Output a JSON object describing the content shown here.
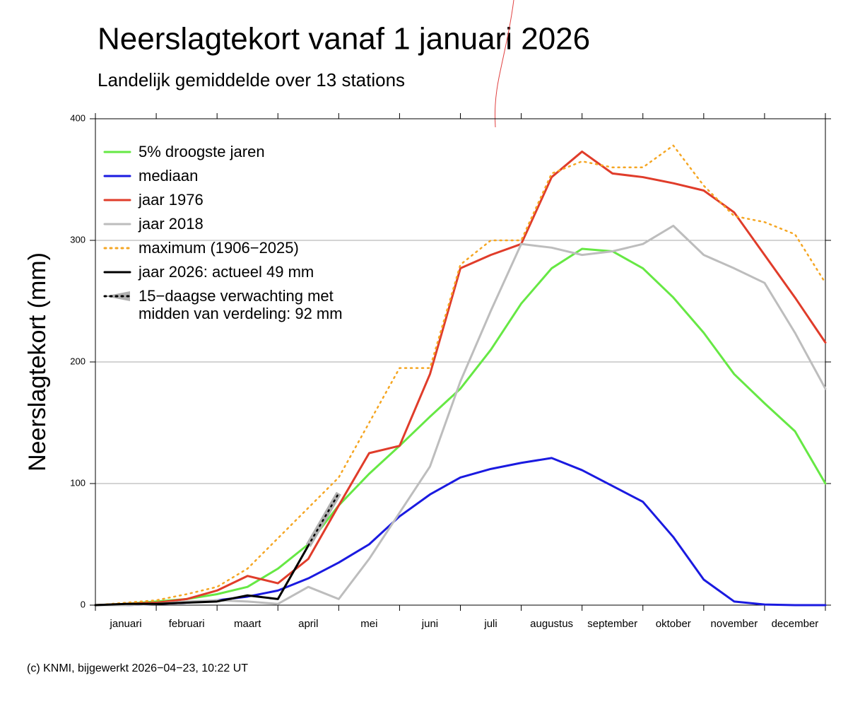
{
  "chart_data": {
    "type": "line",
    "title": "Neerslagtekort vanaf 1 januari 2026",
    "subtitle": "Landelijk gemiddelde over 13 stations",
    "y_label": "Neerslagtekort (mm)",
    "footer": "(c) KNMI, bijgewerkt 2026−04−23, 10:22 UT",
    "categories": [
      null,
      "januari",
      null,
      "februari",
      null,
      "maart",
      null,
      "april",
      null,
      "mei",
      null,
      "juni",
      null,
      "juli",
      null,
      "augustus",
      null,
      "september",
      null,
      "oktober",
      null,
      "november",
      null,
      "december",
      null
    ],
    "ylim": [
      0,
      400
    ],
    "yticks": [
      0,
      100,
      200,
      300,
      400
    ],
    "grid": true,
    "legend": "upper left",
    "series": [
      {
        "name": "5% droogste jaren",
        "color": "#66e844",
        "style": "solid",
        "values": [
          0,
          1,
          3,
          5,
          9,
          15,
          30,
          50,
          82,
          108,
          131,
          155,
          178,
          210,
          248,
          277,
          293,
          291,
          277,
          253,
          224,
          190,
          166,
          143,
          100
        ]
      },
      {
        "name": "mediaan",
        "color": "#1a1ae0",
        "style": "solid",
        "values": [
          0,
          0,
          1,
          2,
          4,
          7,
          12,
          22,
          35,
          50,
          73,
          91,
          105,
          112,
          117,
          121,
          111,
          98,
          85,
          56,
          21,
          3,
          0.5,
          0,
          0
        ]
      },
      {
        "name": "jaar 1976",
        "color": "#e03c2a",
        "style": "solid",
        "values": [
          0,
          1,
          2,
          5,
          12,
          24,
          18,
          38,
          82,
          125,
          131,
          190,
          277,
          288,
          297,
          352,
          373,
          355,
          352,
          347,
          341,
          323,
          288,
          253,
          216
        ]
      },
      {
        "name": "jaar 2018",
        "color": "#bdbdbd",
        "style": "solid",
        "values": [
          0,
          0,
          1,
          3,
          4,
          3,
          1,
          15,
          5,
          38,
          76,
          114,
          184,
          242,
          297,
          294,
          288,
          291,
          297,
          312,
          288,
          277,
          265,
          224,
          178
        ]
      },
      {
        "name": "maximum (1906−2025)",
        "color": "#f5a623",
        "style": "dotted",
        "values": [
          0,
          2,
          4,
          9,
          15,
          30,
          55,
          80,
          105,
          150,
          195,
          195,
          280,
          300,
          300,
          355,
          365,
          360,
          360,
          378,
          345,
          320,
          315,
          305,
          265
        ]
      },
      {
        "name": "jaar 2026: actueel 49 mm",
        "color": "#000000",
        "style": "solid",
        "values": [
          0,
          1,
          1,
          2,
          3,
          8,
          5,
          49,
          null,
          null,
          null,
          null,
          null,
          null,
          null,
          null,
          null,
          null,
          null,
          null,
          null,
          null,
          null,
          null,
          null
        ]
      },
      {
        "name": "15−daagse verwachting met midden van verdeling: 92 mm",
        "color": "#000000",
        "style": "dotted",
        "band_color": "#b0b0b0",
        "values": [
          null,
          null,
          null,
          null,
          null,
          null,
          null,
          49,
          92,
          null,
          null,
          null,
          null,
          null,
          null,
          null,
          null,
          null,
          null,
          null,
          null,
          null,
          null,
          null,
          null
        ]
      }
    ]
  }
}
